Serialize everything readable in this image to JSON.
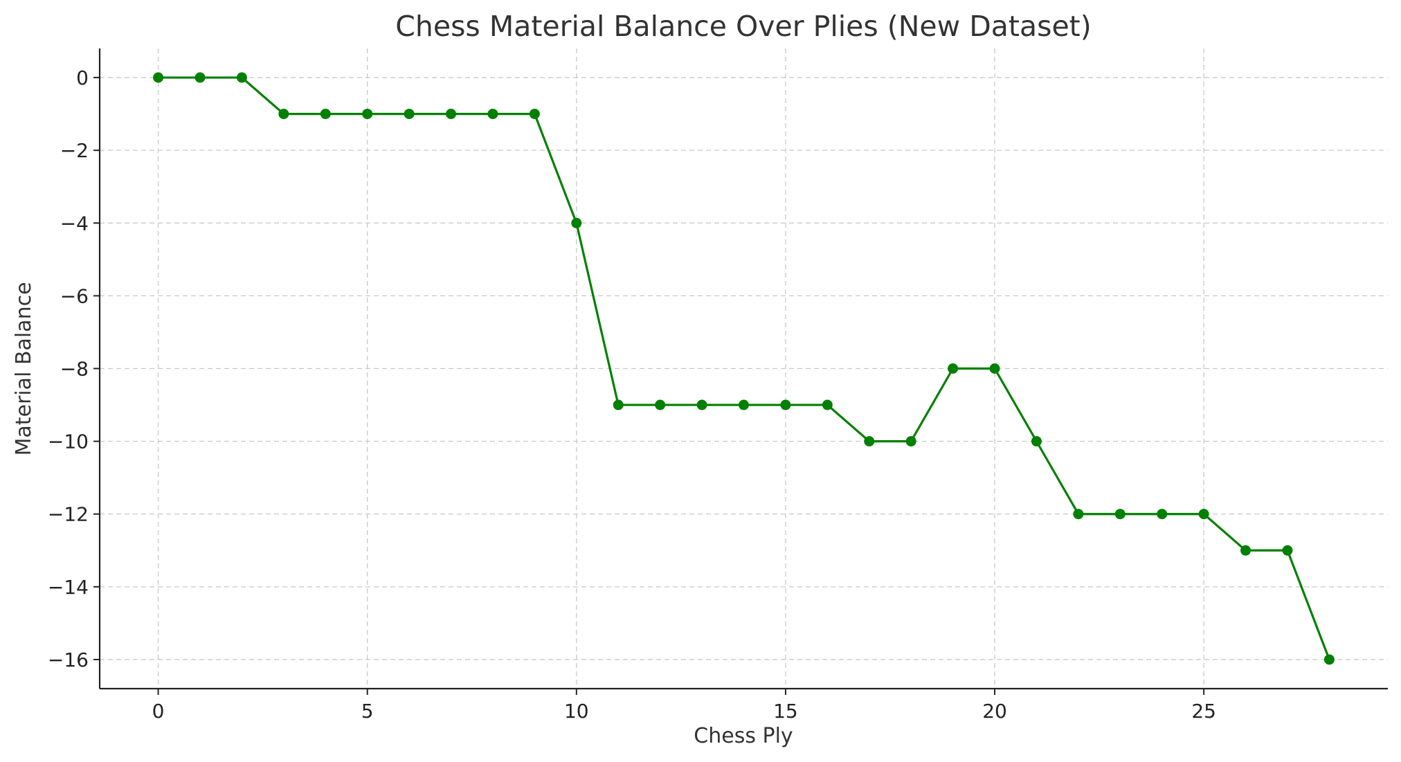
{
  "chart_data": {
    "type": "line",
    "title": "Chess Material Balance Over Plies (New Dataset)",
    "xlabel": "Chess Ply",
    "ylabel": "Material Balance",
    "x": [
      0,
      1,
      2,
      3,
      4,
      5,
      6,
      7,
      8,
      9,
      10,
      11,
      12,
      13,
      14,
      15,
      16,
      17,
      18,
      19,
      20,
      21,
      22,
      23,
      24,
      25,
      26,
      27,
      28
    ],
    "series": [
      {
        "values": [
          0,
          0,
          0,
          -1,
          -1,
          -1,
          -1,
          -1,
          -1,
          -1,
          -4,
          -9,
          -9,
          -9,
          -9,
          -9,
          -9,
          -10,
          -10,
          -8,
          -8,
          -10,
          -12,
          -12,
          -12,
          -12,
          -13,
          -13,
          -16
        ],
        "color": "#008000",
        "marker": "circle"
      }
    ],
    "xlim": [
      -1.4,
      29.4
    ],
    "ylim": [
      -16.8,
      0.8
    ],
    "xticks": [
      0,
      5,
      10,
      15,
      20,
      25
    ],
    "yticks": [
      0,
      -2,
      -4,
      -6,
      -8,
      -10,
      -12,
      -14,
      -16
    ],
    "xtick_labels": [
      "0",
      "5",
      "10",
      "15",
      "20",
      "25"
    ],
    "ytick_labels": [
      "0",
      "−2",
      "−4",
      "−6",
      "−8",
      "−10",
      "−12",
      "−14",
      "−16"
    ],
    "grid": true,
    "grid_style": "dashed"
  }
}
